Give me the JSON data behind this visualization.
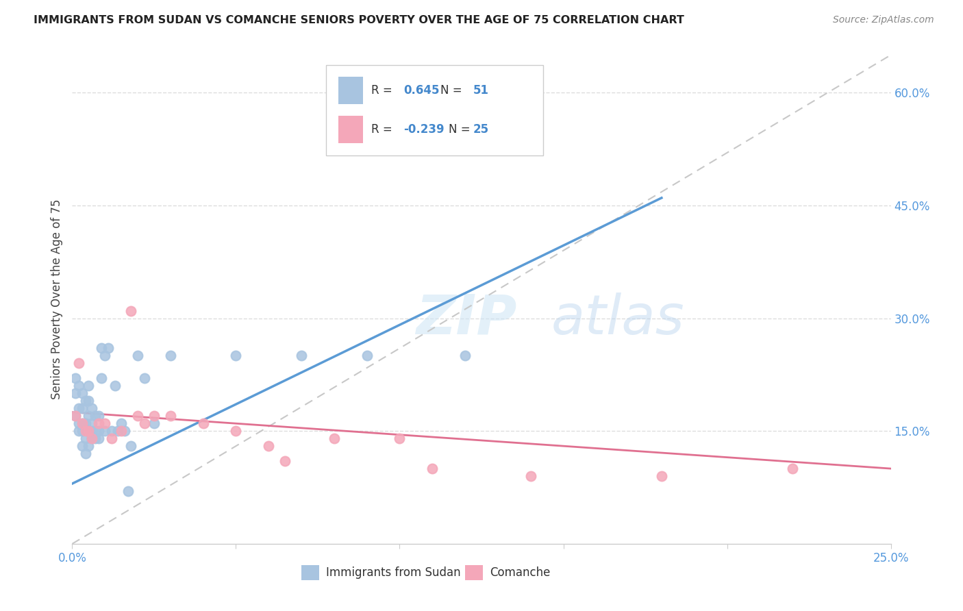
{
  "title": "IMMIGRANTS FROM SUDAN VS COMANCHE SENIORS POVERTY OVER THE AGE OF 75 CORRELATION CHART",
  "source": "Source: ZipAtlas.com",
  "ylabel": "Seniors Poverty Over the Age of 75",
  "xlim": [
    0.0,
    0.25
  ],
  "ylim": [
    0.0,
    0.65
  ],
  "x_ticks": [
    0.0,
    0.05,
    0.1,
    0.15,
    0.2,
    0.25
  ],
  "x_tick_labels": [
    "0.0%",
    "",
    "",
    "",
    "",
    "25.0%"
  ],
  "y_ticks_right": [
    0.15,
    0.3,
    0.45,
    0.6
  ],
  "y_tick_labels_right": [
    "15.0%",
    "30.0%",
    "45.0%",
    "60.0%"
  ],
  "legend_label1": "Immigrants from Sudan",
  "legend_label2": "Comanche",
  "R1": "0.645",
  "N1": "51",
  "R2": "-0.239",
  "N2": "25",
  "color_blue": "#a8c4e0",
  "color_pink": "#f4a7b9",
  "line_blue": "#5b9bd5",
  "line_pink": "#e07090",
  "line_dash": "#c8c8c8",
  "blue_line_x0": 0.0,
  "blue_line_y0": 0.08,
  "blue_line_x1": 0.18,
  "blue_line_y1": 0.46,
  "pink_line_x0": 0.0,
  "pink_line_y0": 0.175,
  "pink_line_x1": 0.25,
  "pink_line_y1": 0.1,
  "sudan_x": [
    0.001,
    0.001,
    0.001,
    0.002,
    0.002,
    0.002,
    0.002,
    0.003,
    0.003,
    0.003,
    0.003,
    0.003,
    0.004,
    0.004,
    0.004,
    0.004,
    0.005,
    0.005,
    0.005,
    0.005,
    0.005,
    0.006,
    0.006,
    0.006,
    0.006,
    0.007,
    0.007,
    0.007,
    0.008,
    0.008,
    0.008,
    0.009,
    0.009,
    0.01,
    0.01,
    0.011,
    0.012,
    0.013,
    0.014,
    0.015,
    0.016,
    0.017,
    0.018,
    0.02,
    0.022,
    0.025,
    0.03,
    0.05,
    0.07,
    0.09,
    0.12
  ],
  "sudan_y": [
    0.17,
    0.2,
    0.22,
    0.15,
    0.16,
    0.18,
    0.21,
    0.13,
    0.15,
    0.16,
    0.18,
    0.2,
    0.12,
    0.14,
    0.16,
    0.19,
    0.13,
    0.15,
    0.17,
    0.19,
    0.21,
    0.14,
    0.15,
    0.16,
    0.18,
    0.14,
    0.15,
    0.17,
    0.14,
    0.15,
    0.17,
    0.22,
    0.26,
    0.15,
    0.25,
    0.26,
    0.15,
    0.21,
    0.15,
    0.16,
    0.15,
    0.07,
    0.13,
    0.25,
    0.22,
    0.16,
    0.25,
    0.25,
    0.25,
    0.25,
    0.25
  ],
  "comanche_x": [
    0.001,
    0.002,
    0.003,
    0.004,
    0.005,
    0.006,
    0.008,
    0.01,
    0.012,
    0.015,
    0.018,
    0.02,
    0.022,
    0.025,
    0.03,
    0.04,
    0.05,
    0.06,
    0.065,
    0.08,
    0.1,
    0.11,
    0.14,
    0.18,
    0.22
  ],
  "comanche_y": [
    0.17,
    0.24,
    0.16,
    0.15,
    0.15,
    0.14,
    0.16,
    0.16,
    0.14,
    0.15,
    0.31,
    0.17,
    0.16,
    0.17,
    0.17,
    0.16,
    0.15,
    0.13,
    0.11,
    0.14,
    0.14,
    0.1,
    0.09,
    0.09,
    0.1
  ]
}
